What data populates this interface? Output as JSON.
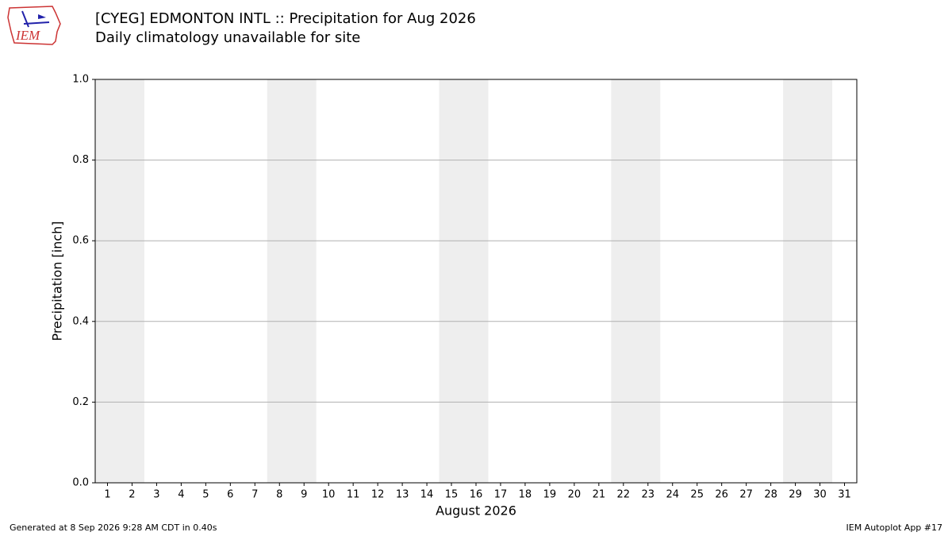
{
  "chart_data": {
    "type": "bar",
    "title": "[CYEG] EDMONTON INTL :: Precipitation for Aug 2026",
    "subtitle": "Daily climatology unavailable for site",
    "ylabel": "Precipitation [inch]",
    "xlabel": "August 2026",
    "xlim": [
      0.5,
      31.5
    ],
    "xticks": [
      1,
      2,
      3,
      4,
      5,
      6,
      7,
      8,
      9,
      10,
      11,
      12,
      13,
      14,
      15,
      16,
      17,
      18,
      19,
      20,
      21,
      22,
      23,
      24,
      25,
      26,
      27,
      28,
      29,
      30,
      31
    ],
    "ylim": [
      0,
      1
    ],
    "yticks": [
      {
        "value": 0,
        "label": "0.0"
      },
      {
        "value": 0.2,
        "label": "0.2"
      },
      {
        "value": 0.4,
        "label": "0.4"
      },
      {
        "value": 0.6,
        "label": "0.6"
      },
      {
        "value": 0.8,
        "label": "0.8"
      },
      {
        "value": 1,
        "label": "1.0"
      }
    ],
    "grid": true,
    "highlight_spans": [
      [
        0.5,
        2.5
      ],
      [
        7.5,
        9.5
      ],
      [
        14.5,
        16.5
      ],
      [
        21.5,
        23.5
      ],
      [
        28.5,
        30.5
      ]
    ],
    "highlight_color": "#eeeeee"
  },
  "logo_text": "IEM",
  "footer": {
    "left": "Generated at 8 Sep 2026 9:28 AM CDT in 0.40s",
    "right": "IEM Autoplot App #17"
  }
}
